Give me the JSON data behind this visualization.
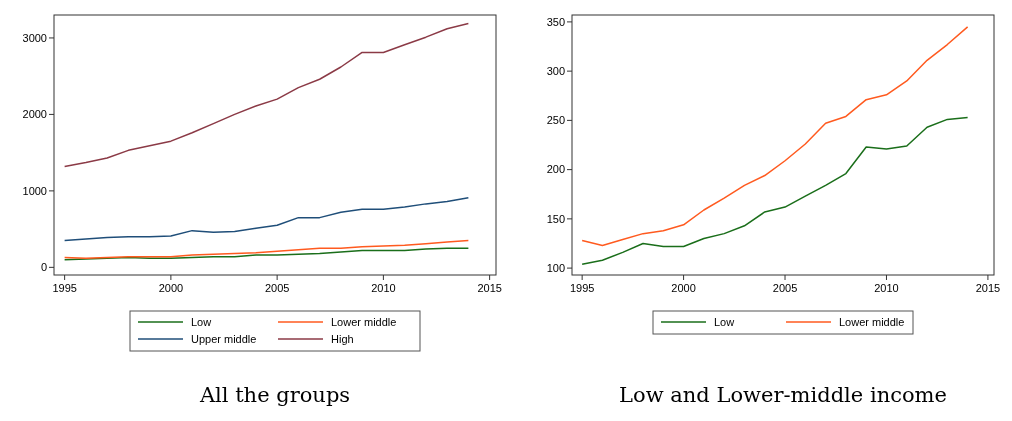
{
  "chart_data": [
    {
      "type": "line",
      "title": "All the groups",
      "x": [
        1995,
        1996,
        1997,
        1998,
        1999,
        2000,
        2001,
        2002,
        2003,
        2004,
        2005,
        2006,
        2007,
        2008,
        2009,
        2010,
        2011,
        2012,
        2013,
        2014
      ],
      "xlim": [
        1994.5,
        2015.3
      ],
      "xticks": [
        1995,
        2000,
        2005,
        2010,
        2015
      ],
      "ylim": [
        -100,
        3300
      ],
      "yticks": [
        0,
        1000,
        2000,
        3000
      ],
      "legend": "bottom",
      "series": [
        {
          "name": "Low",
          "color": "#1a6e1a",
          "values": [
            100,
            110,
            120,
            130,
            120,
            120,
            130,
            140,
            140,
            160,
            160,
            170,
            180,
            200,
            220,
            220,
            220,
            240,
            250,
            250
          ]
        },
        {
          "name": "Lower middle",
          "color": "#ff5a1f",
          "values": [
            130,
            120,
            130,
            140,
            140,
            140,
            160,
            170,
            180,
            190,
            210,
            230,
            250,
            250,
            270,
            280,
            290,
            310,
            330,
            350
          ]
        },
        {
          "name": "Upper middle",
          "color": "#1f4e79",
          "values": [
            350,
            370,
            390,
            400,
            400,
            410,
            480,
            460,
            470,
            510,
            550,
            650,
            650,
            720,
            760,
            760,
            790,
            830,
            860,
            910
          ]
        },
        {
          "name": "High",
          "color": "#8b3a46",
          "values": [
            1320,
            1370,
            1430,
            1530,
            1590,
            1650,
            1760,
            1880,
            2000,
            2110,
            2200,
            2350,
            2460,
            2620,
            2810,
            2810,
            2910,
            3010,
            3120,
            3190
          ]
        }
      ]
    },
    {
      "type": "line",
      "title": "Low and Lower-middle income",
      "x": [
        1995,
        1996,
        1997,
        1998,
        1999,
        2000,
        2001,
        2002,
        2003,
        2004,
        2005,
        2006,
        2007,
        2008,
        2009,
        2010,
        2011,
        2012,
        2013,
        2014
      ],
      "xlim": [
        1994.5,
        2015.3
      ],
      "xticks": [
        1995,
        2000,
        2005,
        2010,
        2015
      ],
      "ylim": [
        93,
        357
      ],
      "yticks": [
        100,
        150,
        200,
        250,
        300,
        350
      ],
      "legend": "bottom",
      "series": [
        {
          "name": "Low",
          "color": "#1a6e1a",
          "values": [
            104,
            108,
            116,
            125,
            122,
            122,
            130,
            135,
            143,
            157,
            162,
            173,
            184,
            196,
            223,
            221,
            224,
            243,
            251,
            253
          ]
        },
        {
          "name": "Lower middle",
          "color": "#ff5a1f",
          "values": [
            128,
            123,
            129,
            135,
            138,
            144,
            159,
            171,
            184,
            194,
            209,
            226,
            247,
            254,
            271,
            276,
            290,
            311,
            327,
            345
          ]
        }
      ]
    }
  ]
}
